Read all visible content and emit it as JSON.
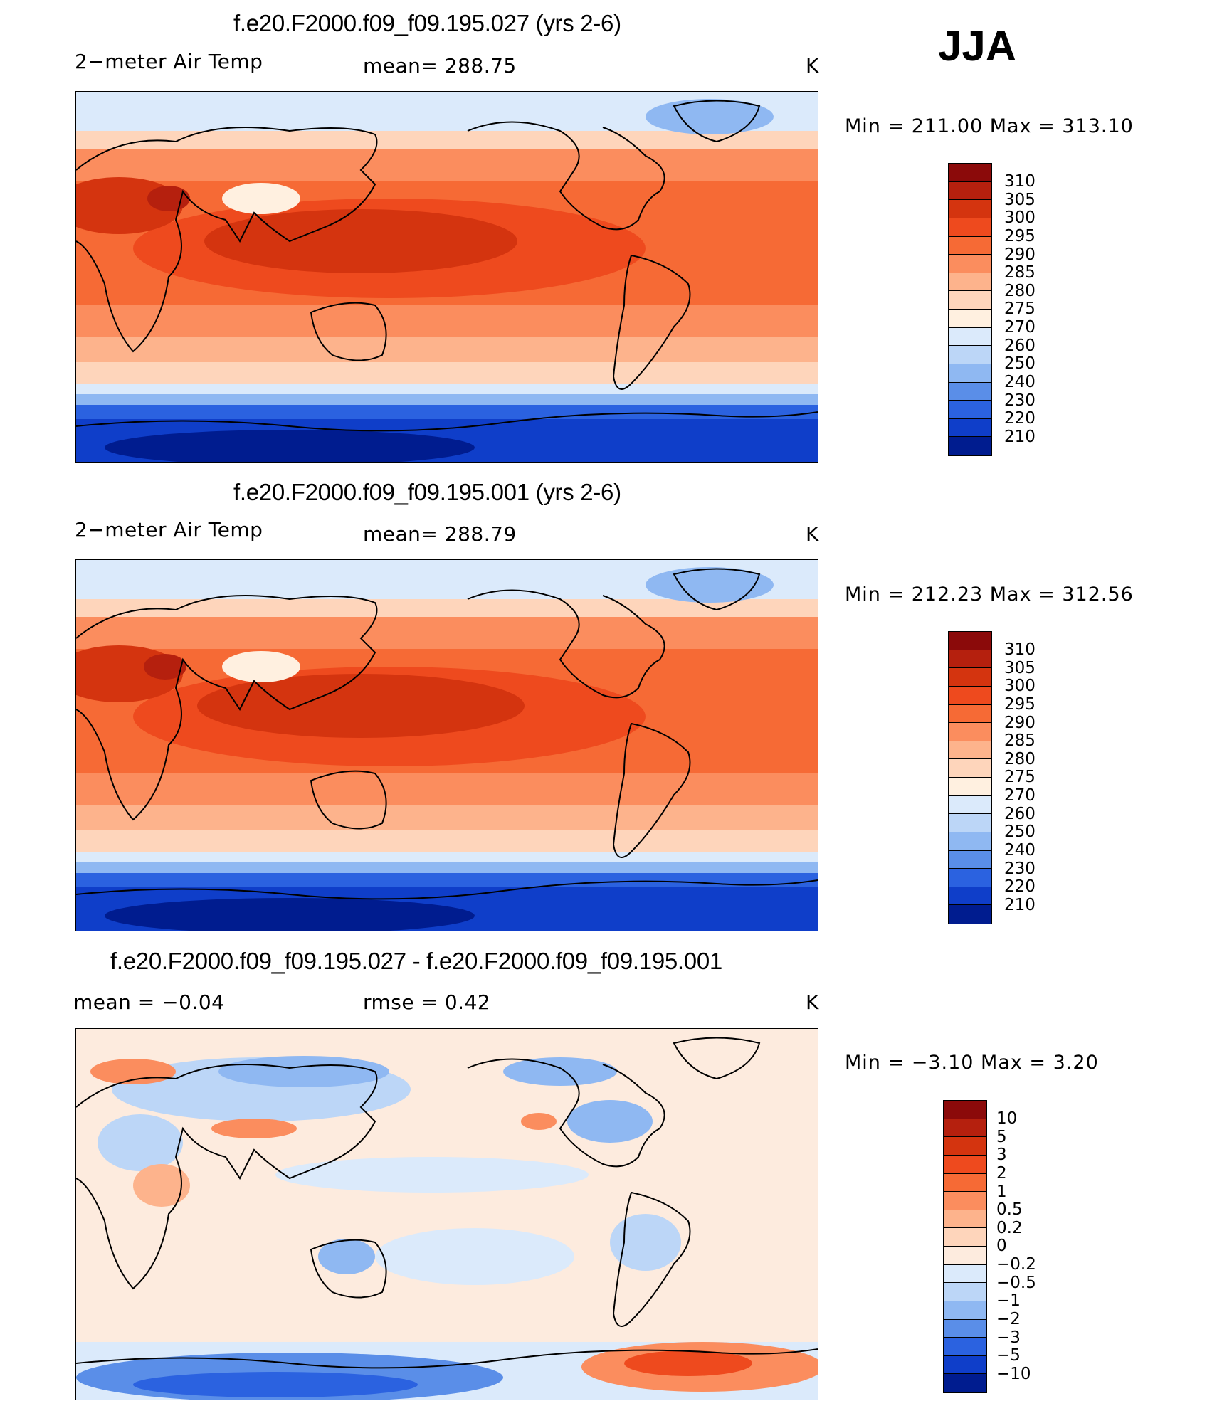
{
  "season": "JJA",
  "units_label": "K",
  "panels": [
    {
      "title": "f.e20.F2000.f09_f09.195.027 (yrs 2-6)",
      "left_text": "2−meter Air Temp",
      "mid_text": "mean=  288.75",
      "units": "K",
      "minmax": "Min  =  211.00  Max  =  313.10",
      "kind": "abs"
    },
    {
      "title": "f.e20.F2000.f09_f09.195.001 (yrs 2-6)",
      "left_text": "2−meter Air Temp",
      "mid_text": "mean=  288.79",
      "units": "K",
      "minmax": "Min  =  212.23  Max  =  312.56",
      "kind": "abs"
    },
    {
      "title": "f.e20.F2000.f09_f09.195.027 - f.e20.F2000.f09_f09.195.001",
      "left_text": "mean  =    −0.04",
      "mid_text": "rmse  =     0.42",
      "units": "K",
      "minmax": "Min  =    −3.10  Max  =      3.20",
      "kind": "diff"
    }
  ],
  "colorbar_abs": {
    "labels": [
      "310",
      "305",
      "300",
      "295",
      "290",
      "285",
      "280",
      "275",
      "270",
      "260",
      "250",
      "240",
      "230",
      "220",
      "210"
    ],
    "colors": [
      "#8b0a0a",
      "#b5200e",
      "#d4340f",
      "#ee4a1e",
      "#f66a35",
      "#fb8d5e",
      "#fdb38c",
      "#fed5bb",
      "#fff0e0",
      "#dbeafb",
      "#bcd6f7",
      "#8fb8f2",
      "#5a8ee8",
      "#2b62e0",
      "#0f3ec9",
      "#001c8f"
    ]
  },
  "colorbar_diff": {
    "labels": [
      "10",
      "5",
      "3",
      "2",
      "1",
      "0.5",
      "0.2",
      "0",
      "−0.2",
      "−0.5",
      "−1",
      "−2",
      "−3",
      "−5",
      "−10"
    ],
    "colors": [
      "#8b0a0a",
      "#b5200e",
      "#d4340f",
      "#ee4a1e",
      "#f66a35",
      "#fb8d5e",
      "#fdb38c",
      "#fed5bb",
      "#fdebde",
      "#dbeafb",
      "#bcd6f7",
      "#8fb8f2",
      "#5a8ee8",
      "#2b62e0",
      "#0f3ec9",
      "#001c8f"
    ]
  },
  "map_colors": {
    "polar_north": "#dbeafb",
    "midlat_north": "#fdb38c",
    "tropics_outer": "#f66a35",
    "tropics_core": "#d4340f",
    "south_mid": "#fed5bb",
    "south_cool": "#bcd6f7",
    "antarctic_edge": "#5a8ee8",
    "antarctic": "#1546d6",
    "antarctic_deep": "#001c8f",
    "diff_base": "#fdebde",
    "diff_blue": "#bcd6f7",
    "diff_blue_strong": "#5a8ee8",
    "diff_red": "#fb8d5e",
    "diff_red_strong": "#ee4a1e"
  }
}
